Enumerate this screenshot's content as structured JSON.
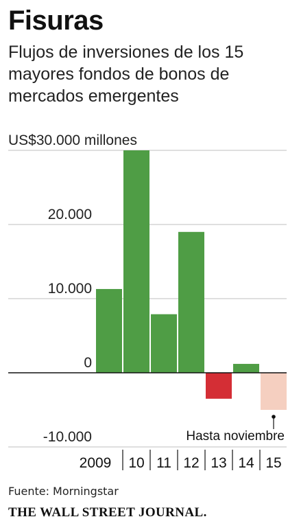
{
  "header": {
    "title": "Fisuras",
    "subtitle": "Flujos de inversiones de los 15 mayores fondos de bonos de mercados emergentes"
  },
  "chart_data": {
    "type": "bar",
    "title": "Fisuras",
    "subtitle": "Flujos de inversiones de los 15 mayores fondos de bonos de mercados emergentes",
    "unit_label": "US$30.000 millones",
    "categories": [
      "2009",
      "10",
      "11",
      "12",
      "13",
      "14",
      "15"
    ],
    "values": [
      11300,
      30000,
      7900,
      19000,
      -3500,
      1200,
      -5000
    ],
    "ylim": [
      -10000,
      30000
    ],
    "yticks": [
      -10000,
      0,
      10000,
      20000,
      30000
    ],
    "ytick_labels": [
      "-10.000",
      "0",
      "10.000",
      "20.000",
      "US$30.000 millones"
    ],
    "grid": true,
    "annotation": "Hasta noviembre",
    "colors": {
      "positive": "#4f9d45",
      "negative": "#d42e35",
      "partial": "#f5cfc0",
      "grid": "#bfbfbf",
      "axis": "#111111"
    }
  },
  "footer": {
    "source": "Fuente: Morningstar",
    "publisher": "THE WALL STREET JOURNAL."
  }
}
